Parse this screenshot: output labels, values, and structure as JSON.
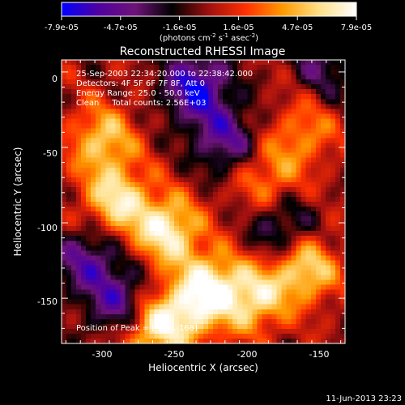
{
  "colorbar": {
    "tick_labels": [
      "-7.9e-05",
      "-4.7e-05",
      "-1.6e-05",
      "1.6e-05",
      "4.7e-05",
      "7.9e-05"
    ],
    "unit_label": "(photons cm",
    "unit_exp1": "-2",
    "unit_mid": " s",
    "unit_exp2": "-1",
    "unit_tail": " asec",
    "unit_exp3": "-2",
    "unit_close": ")",
    "range": [
      -7.9e-05,
      7.9e-05
    ],
    "colors": [
      "#0000ff",
      "#5000a0",
      "#6e1478",
      "#000000",
      "#a01010",
      "#ff3000",
      "#ff9a00",
      "#ffe08a",
      "#ffffff"
    ]
  },
  "chart_data": {
    "type": "heatmap",
    "title": "Reconstructed RHESSI Image",
    "xlabel": "Heliocentric X (arcsec)",
    "ylabel": "Heliocentric Y (arcsec)",
    "xlim": [
      -328,
      -132
    ],
    "ylim": [
      -180,
      8
    ],
    "xticks": [
      -300,
      -250,
      -200,
      -150
    ],
    "yticks": [
      0,
      -50,
      -100,
      -150
    ],
    "info_lines": [
      "25-Sep-2003 22:34:20.000 to 22:38:42.000",
      "Detectors: 4F 5F 6F 7F 8F, Att 0",
      "Energy Range: 25.0 - 50.0 keV",
      "Clean     Total counts: 2.56E+03"
    ],
    "peak_label": "Position of Peak = [-268,-168]",
    "peak": [
      -268,
      -168
    ],
    "value_range": [
      -7.9e-05,
      7.9e-05
    ],
    "sources": [
      {
        "x": -255,
        "y": -105,
        "v": 1.0
      },
      {
        "x": -290,
        "y": -85,
        "v": 0.9
      },
      {
        "x": -300,
        "y": -45,
        "v": 0.75
      },
      {
        "x": -268,
        "y": -168,
        "v": 1.0
      },
      {
        "x": -195,
        "y": -150,
        "v": 0.85
      },
      {
        "x": -160,
        "y": -130,
        "v": 0.9
      },
      {
        "x": -225,
        "y": -140,
        "v": 0.8
      },
      {
        "x": -185,
        "y": -70,
        "v": 0.55
      },
      {
        "x": -160,
        "y": -40,
        "v": 0.5
      },
      {
        "x": -240,
        "y": -160,
        "v": 0.7
      },
      {
        "x": -235,
        "y": -10,
        "v": -1.0
      },
      {
        "x": -285,
        "y": -155,
        "v": -0.9
      },
      {
        "x": -215,
        "y": -45,
        "v": -0.7
      },
      {
        "x": -175,
        "y": -105,
        "v": -0.6
      },
      {
        "x": -145,
        "y": 5,
        "v": -0.5
      },
      {
        "x": -310,
        "y": -125,
        "v": -0.7
      }
    ]
  },
  "timestamp": "11-Jun-2013 23:23"
}
